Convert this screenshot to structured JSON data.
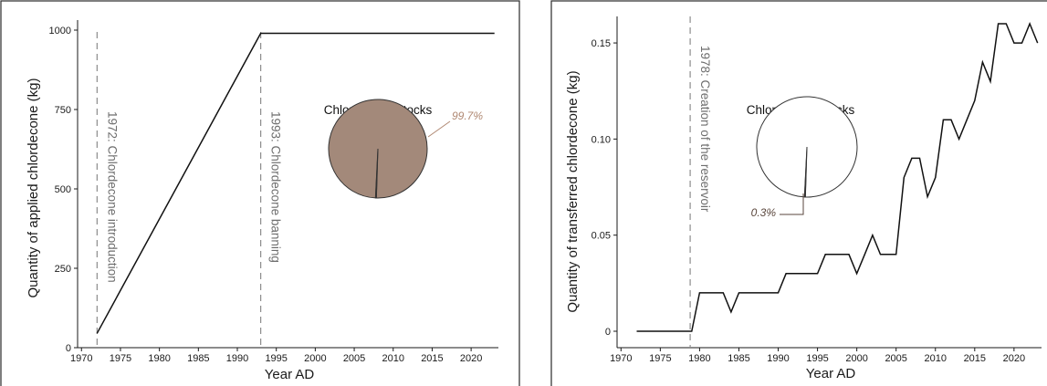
{
  "chart_data": [
    {
      "type": "line",
      "xlabel": "Year AD",
      "ylabel": "Quantity of applied chlordecone (kg)",
      "xlim": [
        1969.5,
        2023.5
      ],
      "ylim": [
        0,
        1000
      ],
      "x_ticks": [
        "1970",
        "1975",
        "1980",
        "1985",
        "1990",
        "1995",
        "2000",
        "2005",
        "2010",
        "2015",
        "2020"
      ],
      "y_ticks": [
        "0",
        "250",
        "500",
        "750",
        "1000"
      ],
      "series": [
        {
          "x": [
            1972,
            1993,
            2023
          ],
          "y": [
            45,
            990,
            990
          ]
        }
      ],
      "events": [
        {
          "x": 1972,
          "label": "1972: Chlordecone introduction"
        },
        {
          "x": 1993,
          "label": "1993: Chlordecone banning"
        }
      ],
      "inset": {
        "type": "pie",
        "title": "Chlordecone stocks",
        "slices": [
          {
            "value": 99.7,
            "label": "99.7%",
            "color": "#a3897a",
            "label_color": "#b08872"
          },
          {
            "value": 0.3,
            "label": "",
            "color": "#4a3a33"
          }
        ]
      }
    },
    {
      "type": "line",
      "xlabel": "Year AD",
      "ylabel": "Quantity of transferred chlordecone (kg)",
      "xlim": [
        1969.5,
        2023.5
      ],
      "ylim": [
        0,
        0.16
      ],
      "x_ticks": [
        "1970",
        "1975",
        "1980",
        "1985",
        "1990",
        "1995",
        "2000",
        "2005",
        "2010",
        "2015",
        "2020"
      ],
      "y_ticks": [
        "0",
        "0.05",
        "0.10",
        "0.15"
      ],
      "series": [
        {
          "x": [
            1972,
            1973,
            1974,
            1975,
            1976,
            1977,
            1978,
            1979,
            1980,
            1981,
            1982,
            1983,
            1984,
            1985,
            1986,
            1987,
            1988,
            1989,
            1990,
            1991,
            1992,
            1993,
            1994,
            1995,
            1996,
            1997,
            1998,
            1999,
            2000,
            2001,
            2002,
            2003,
            2004,
            2005,
            2006,
            2007,
            2008,
            2009,
            2010,
            2011,
            2012,
            2013,
            2014,
            2015,
            2016,
            2017,
            2018,
            2019,
            2020,
            2021,
            2022,
            2023
          ],
          "y": [
            0,
            0,
            0,
            0,
            0,
            0,
            0,
            0,
            0.02,
            0.02,
            0.02,
            0.02,
            0.01,
            0.02,
            0.02,
            0.02,
            0.02,
            0.02,
            0.02,
            0.03,
            0.03,
            0.03,
            0.03,
            0.03,
            0.04,
            0.04,
            0.04,
            0.04,
            0.03,
            0.04,
            0.05,
            0.04,
            0.04,
            0.04,
            0.08,
            0.09,
            0.09,
            0.07,
            0.08,
            0.11,
            0.11,
            0.1,
            0.11,
            0.12,
            0.14,
            0.13,
            0.16,
            0.16,
            0.15,
            0.15,
            0.16,
            0.15
          ]
        }
      ],
      "events": [
        {
          "x": 1978.8,
          "label": "1978: Creation of the reservoir"
        }
      ],
      "inset": {
        "type": "pie",
        "title": "Chlordecone stocks",
        "slices": [
          {
            "value": 99.7,
            "label": "",
            "color": "#ffffff"
          },
          {
            "value": 0.3,
            "label": "0.3%",
            "color": "#3d302a",
            "label_color": "#5a463c"
          }
        ]
      }
    }
  ]
}
